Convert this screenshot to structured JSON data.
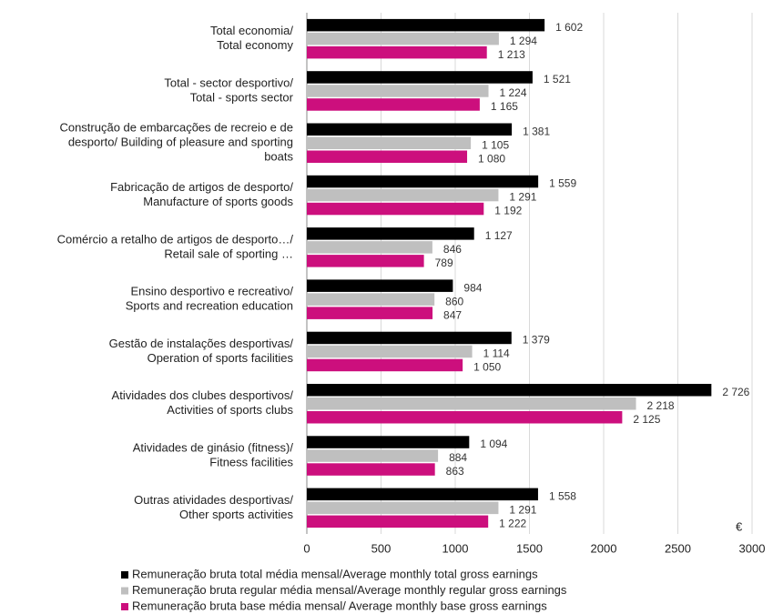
{
  "chart_data": {
    "type": "bar",
    "orientation": "horizontal",
    "categories": [
      [
        "Total economia/",
        "Total economy"
      ],
      [
        "Total - sector desportivo/",
        "Total - sports sector"
      ],
      [
        "Construção de embarcações de recreio e de",
        "desporto/ Building of pleasure and sporting",
        "boats"
      ],
      [
        "Fabricação de artigos de desporto/",
        "Manufacture of sports goods"
      ],
      [
        "Comércio a retalho de artigos de desporto…/",
        "Retail sale of sporting …"
      ],
      [
        "Ensino desportivo e recreativo/",
        "Sports and recreation education"
      ],
      [
        "Gestão de instalações desportivas/",
        "Operation of sports facilities"
      ],
      [
        "Atividades dos clubes desportivos/",
        "Activities of sports clubs"
      ],
      [
        "Atividades de ginásio (fitness)/",
        "Fitness facilities"
      ],
      [
        "Outras atividades desportivas/",
        "Other sports activities"
      ]
    ],
    "series": [
      {
        "name": "Remuneração bruta total média mensal/Average monthly total gross earnings",
        "color": "#000000",
        "values": [
          1602,
          1521,
          1381,
          1559,
          1127,
          984,
          1379,
          2726,
          1094,
          1558
        ],
        "value_labels": [
          "1 602",
          "1 521",
          "1 381",
          "1 559",
          "1 127",
          "984",
          "1 379",
          "2 726",
          "1 094",
          "1 558"
        ]
      },
      {
        "name": "Remuneração bruta regular média mensal/Average monthly regular gross earnings",
        "color": "#bfbfbf",
        "values": [
          1294,
          1224,
          1105,
          1291,
          846,
          860,
          1114,
          2218,
          884,
          1291
        ],
        "value_labels": [
          "1 294",
          "1 224",
          "1 105",
          "1 291",
          "846",
          "860",
          "1 114",
          "2 218",
          "884",
          "1 291"
        ]
      },
      {
        "name": "Remuneração bruta base média mensal/ Average monthly base gross earnings",
        "color": "#cc0f7d",
        "values": [
          1213,
          1165,
          1080,
          1192,
          789,
          847,
          1050,
          2125,
          863,
          1222
        ],
        "value_labels": [
          "1 213",
          "1 165",
          "1 080",
          "1 192",
          "789",
          "847",
          "1 050",
          "2 125",
          "863",
          "1 222"
        ]
      }
    ],
    "x_label": "€",
    "xlim": [
      0,
      3000
    ],
    "xticks": [
      0,
      500,
      1000,
      1500,
      2000,
      2500,
      3000
    ],
    "grid": true,
    "legend": "bottom"
  }
}
